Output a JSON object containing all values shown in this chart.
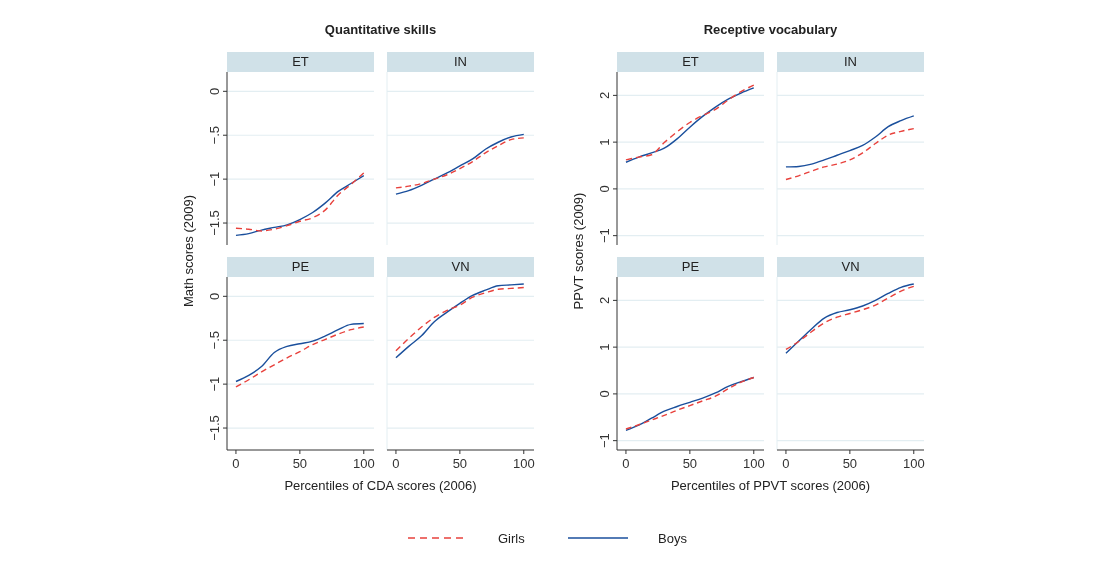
{
  "chart_data": [
    {
      "type": "line",
      "title": "ET",
      "annotations": [
        "Quantitative skills"
      ],
      "ylabel": "Math scores (2009)",
      "legend": "bottom",
      "grid": "y",
      "tick_labels": "y",
      "xlim": [
        -7,
        108
      ],
      "ylim": [
        -1.75,
        0.22
      ],
      "yticks": [
        0,
        {
          "value": -0.5,
          "label": "−.5"
        },
        {
          "value": -1,
          "label": "−1"
        },
        {
          "value": -1.5,
          "label": "−1.5"
        }
      ],
      "x": [
        0,
        10,
        20,
        30,
        40,
        50,
        60,
        70,
        80,
        90,
        100
      ],
      "series": [
        {
          "name": "Girls",
          "color": "#e8413c",
          "line_style": "dashed",
          "values": [
            -1.56,
            -1.57,
            -1.59,
            -1.57,
            -1.53,
            -1.48,
            -1.44,
            -1.35,
            -1.18,
            -1.06,
            -0.93
          ]
        },
        {
          "name": "Boys",
          "color": "#1a4f9c",
          "line_style": "solid",
          "values": [
            -1.64,
            -1.62,
            -1.58,
            -1.55,
            -1.52,
            -1.46,
            -1.38,
            -1.27,
            -1.14,
            -1.05,
            -0.96
          ]
        }
      ]
    },
    {
      "type": "line",
      "title": "IN",
      "grid": "y",
      "tick_labels": false,
      "xlim": [
        -7,
        108
      ],
      "ylim": [
        -1.75,
        0.22
      ],
      "yticks": [
        0,
        -0.5,
        -1,
        -1.5
      ],
      "x": [
        0,
        10,
        20,
        30,
        40,
        50,
        60,
        70,
        80,
        90,
        100
      ],
      "series": [
        {
          "color": "#e8413c",
          "line_style": "dashed",
          "values": [
            -1.1,
            -1.08,
            -1.05,
            -1.0,
            -0.95,
            -0.88,
            -0.8,
            -0.7,
            -0.62,
            -0.55,
            -0.53
          ]
        },
        {
          "color": "#1a4f9c",
          "line_style": "solid",
          "values": [
            -1.17,
            -1.13,
            -1.07,
            -1.0,
            -0.93,
            -0.85,
            -0.77,
            -0.66,
            -0.58,
            -0.52,
            -0.49
          ]
        }
      ]
    },
    {
      "type": "line",
      "title": "PE",
      "xlabel": "Percentiles of CDA scores (2006)",
      "grid": "y",
      "xlim": [
        -7,
        108
      ],
      "ylim": [
        -1.75,
        0.22
      ],
      "xticks": [
        0,
        50,
        100
      ],
      "yticks": [
        0,
        {
          "value": -0.5,
          "label": "−.5"
        },
        {
          "value": -1,
          "label": "−1"
        },
        {
          "value": -1.5,
          "label": "−1.5"
        }
      ],
      "x": [
        0,
        10,
        20,
        30,
        40,
        50,
        60,
        70,
        80,
        90,
        100
      ],
      "series": [
        {
          "color": "#e8413c",
          "line_style": "dashed",
          "values": [
            -1.03,
            -0.95,
            -0.86,
            -0.78,
            -0.7,
            -0.63,
            -0.55,
            -0.49,
            -0.43,
            -0.38,
            -0.35
          ]
        },
        {
          "color": "#1a4f9c",
          "line_style": "solid",
          "values": [
            -0.97,
            -0.9,
            -0.8,
            -0.64,
            -0.57,
            -0.54,
            -0.51,
            -0.45,
            -0.38,
            -0.32,
            -0.31
          ]
        }
      ]
    },
    {
      "type": "line",
      "title": "VN",
      "grid": "y",
      "tick_labels": "x",
      "xlim": [
        -7,
        108
      ],
      "ylim": [
        -1.75,
        0.22
      ],
      "xticks": [
        0,
        50,
        100
      ],
      "yticks": [
        0,
        -0.5,
        -1,
        -1.5
      ],
      "x": [
        0,
        10,
        20,
        30,
        40,
        50,
        60,
        70,
        80,
        90,
        100
      ],
      "series": [
        {
          "color": "#e8413c",
          "line_style": "dashed",
          "values": [
            -0.62,
            -0.48,
            -0.35,
            -0.24,
            -0.16,
            -0.1,
            -0.01,
            0.04,
            0.08,
            0.09,
            0.1
          ]
        },
        {
          "color": "#1a4f9c",
          "line_style": "solid",
          "values": [
            -0.7,
            -0.57,
            -0.45,
            -0.29,
            -0.18,
            -0.08,
            0.01,
            0.07,
            0.12,
            0.13,
            0.14
          ]
        }
      ]
    },
    {
      "type": "line",
      "title": "ET",
      "annotations": [
        "Receptive vocabulary"
      ],
      "ylabel": "PPVT scores (2009)",
      "grid": "y",
      "tick_labels": "y",
      "xlim": [
        -7,
        108
      ],
      "ylim": [
        -1.2,
        2.5
      ],
      "yticks": [
        {
          "value": -1,
          "label": "−1"
        },
        0,
        1,
        2
      ],
      "x": [
        0,
        10,
        20,
        30,
        40,
        50,
        60,
        70,
        80,
        90,
        100
      ],
      "series": [
        {
          "color": "#e8413c",
          "line_style": "dashed",
          "values": [
            0.62,
            0.68,
            0.73,
            0.99,
            1.22,
            1.42,
            1.57,
            1.7,
            1.9,
            2.08,
            2.22
          ]
        },
        {
          "color": "#1a4f9c",
          "line_style": "solid",
          "values": [
            0.57,
            0.68,
            0.77,
            0.87,
            1.07,
            1.32,
            1.55,
            1.75,
            1.92,
            2.05,
            2.16
          ]
        }
      ]
    },
    {
      "type": "line",
      "title": "IN",
      "grid": "y",
      "tick_labels": false,
      "xlim": [
        -7,
        108
      ],
      "ylim": [
        -1.2,
        2.5
      ],
      "yticks": [
        -1,
        0,
        1,
        2
      ],
      "x": [
        0,
        10,
        20,
        30,
        40,
        50,
        60,
        70,
        80,
        90,
        100
      ],
      "series": [
        {
          "color": "#e8413c",
          "line_style": "dashed",
          "values": [
            0.2,
            0.28,
            0.38,
            0.47,
            0.53,
            0.62,
            0.77,
            0.97,
            1.15,
            1.23,
            1.29
          ]
        },
        {
          "color": "#1a4f9c",
          "line_style": "solid",
          "values": [
            0.47,
            0.48,
            0.53,
            0.62,
            0.72,
            0.82,
            0.93,
            1.11,
            1.33,
            1.46,
            1.56
          ]
        }
      ]
    },
    {
      "type": "line",
      "title": "PE",
      "xlabel": "Percentiles of PPVT scores (2006)",
      "grid": "y",
      "xlim": [
        -7,
        108
      ],
      "ylim": [
        -1.2,
        2.5
      ],
      "xticks": [
        0,
        50,
        100
      ],
      "yticks": [
        {
          "value": -1,
          "label": "−1"
        },
        0,
        1,
        2
      ],
      "x": [
        0,
        10,
        20,
        30,
        40,
        50,
        60,
        70,
        80,
        90,
        100
      ],
      "series": [
        {
          "color": "#e8413c",
          "line_style": "dashed",
          "values": [
            -0.75,
            -0.66,
            -0.56,
            -0.46,
            -0.35,
            -0.25,
            -0.15,
            -0.05,
            0.11,
            0.25,
            0.35
          ]
        },
        {
          "color": "#1a4f9c",
          "line_style": "solid",
          "values": [
            -0.78,
            -0.67,
            -0.52,
            -0.37,
            -0.27,
            -0.18,
            -0.09,
            0.02,
            0.16,
            0.26,
            0.35
          ]
        }
      ]
    },
    {
      "type": "line",
      "title": "VN",
      "grid": "y",
      "tick_labels": "x",
      "xlim": [
        -7,
        108
      ],
      "ylim": [
        -1.2,
        2.5
      ],
      "xticks": [
        0,
        50,
        100
      ],
      "yticks": [
        -1,
        0,
        1,
        2
      ],
      "x": [
        0,
        10,
        20,
        30,
        40,
        50,
        60,
        70,
        80,
        90,
        100
      ],
      "series": [
        {
          "color": "#e8413c",
          "line_style": "dashed",
          "values": [
            0.95,
            1.12,
            1.33,
            1.52,
            1.64,
            1.72,
            1.8,
            1.9,
            2.05,
            2.2,
            2.3
          ]
        },
        {
          "color": "#1a4f9c",
          "line_style": "solid",
          "values": [
            0.87,
            1.13,
            1.39,
            1.62,
            1.74,
            1.8,
            1.88,
            2.0,
            2.15,
            2.28,
            2.35
          ]
        }
      ]
    }
  ]
}
